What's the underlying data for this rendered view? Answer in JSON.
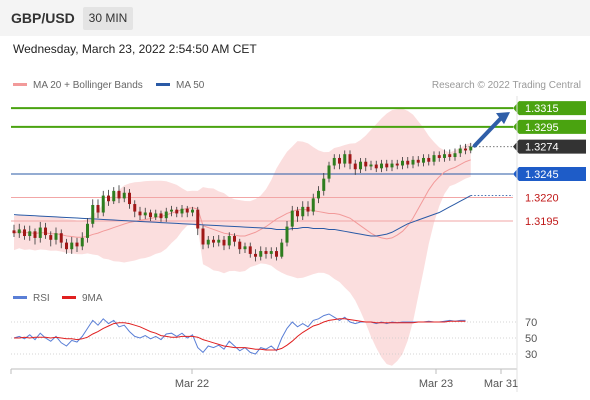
{
  "header": {
    "symbol": "GBP/USD",
    "timeframe": "30 MIN"
  },
  "datetime": "Wednesday, March 23, 2022 2:54:50 AM CET",
  "legend": [
    {
      "label": "MA 20 + Bollinger Bands",
      "color": "#f29a9a"
    },
    {
      "label": "MA 50",
      "color": "#2a5aa6"
    }
  ],
  "credit": "Research © 2022 Trading Central",
  "rsi_legend": [
    {
      "label": "RSI",
      "color": "#5a7fd6"
    },
    {
      "label": "9MA",
      "color": "#e02020"
    }
  ],
  "colors": {
    "up": "#2e7d1f",
    "down": "#a01818",
    "target": "#4aa310",
    "ma50": "#2a5aa6",
    "bollinger": "#f7c3c3",
    "current": "#333333"
  },
  "chart_data": [
    {
      "type": "candlestick",
      "pair": "GBP/USD",
      "interval": "30 MIN",
      "y_range": [
        1.3145,
        1.333
      ],
      "levels": [
        {
          "value": "1.3315",
          "kind": "resistance",
          "style": "green"
        },
        {
          "value": "1.3295",
          "kind": "resistance",
          "style": "green"
        },
        {
          "value": "1.3274",
          "kind": "current",
          "style": "black"
        },
        {
          "value": "1.3245",
          "kind": "pivot",
          "style": "blue"
        },
        {
          "value": "1.3220",
          "kind": "support",
          "style": "red"
        },
        {
          "value": "1.3195",
          "kind": "support",
          "style": "red"
        }
      ],
      "x_labels": [
        "Mar 22",
        "Mar 23",
        "Mar 31"
      ],
      "candles": [
        [
          1.3185,
          1.3182,
          1.3191,
          1.3178
        ],
        [
          1.3182,
          1.3186,
          1.3192,
          1.3177
        ],
        [
          1.3186,
          1.3179,
          1.319,
          1.3175
        ],
        [
          1.3179,
          1.3184,
          1.319,
          1.3174
        ],
        [
          1.3184,
          1.3177,
          1.3187,
          1.317
        ],
        [
          1.3177,
          1.3188,
          1.3194,
          1.3172
        ],
        [
          1.3188,
          1.318,
          1.3193,
          1.3176
        ],
        [
          1.318,
          1.3175,
          1.3184,
          1.3168
        ],
        [
          1.3175,
          1.3182,
          1.3188,
          1.317
        ],
        [
          1.3182,
          1.3172,
          1.3186,
          1.3166
        ],
        [
          1.3172,
          1.3165,
          1.3176,
          1.316
        ],
        [
          1.3165,
          1.3172,
          1.3178,
          1.316
        ],
        [
          1.3172,
          1.3168,
          1.3177,
          1.3162
        ],
        [
          1.3168,
          1.3177,
          1.3183,
          1.3164
        ],
        [
          1.3177,
          1.3192,
          1.3198,
          1.3172
        ],
        [
          1.3192,
          1.3212,
          1.3218,
          1.3188
        ],
        [
          1.3212,
          1.3204,
          1.3218,
          1.3198
        ],
        [
          1.3204,
          1.3222,
          1.3227,
          1.32
        ],
        [
          1.3222,
          1.3216,
          1.3228,
          1.3211
        ],
        [
          1.3216,
          1.3227,
          1.3231,
          1.3213
        ],
        [
          1.3227,
          1.3219,
          1.3233,
          1.3214
        ],
        [
          1.3219,
          1.3225,
          1.3231,
          1.3215
        ],
        [
          1.3225,
          1.3213,
          1.3229,
          1.3208
        ],
        [
          1.3213,
          1.3205,
          1.3217,
          1.3199
        ],
        [
          1.3205,
          1.3201,
          1.321,
          1.3196
        ],
        [
          1.3201,
          1.3204,
          1.3209,
          1.3197
        ],
        [
          1.3204,
          1.3199,
          1.3207,
          1.3195
        ],
        [
          1.3199,
          1.3203,
          1.3207,
          1.3196
        ],
        [
          1.3203,
          1.3198,
          1.3206,
          1.3194
        ],
        [
          1.3198,
          1.3205,
          1.3209,
          1.3194
        ],
        [
          1.3205,
          1.3207,
          1.3211,
          1.32
        ],
        [
          1.3207,
          1.3203,
          1.321,
          1.3199
        ],
        [
          1.3203,
          1.3208,
          1.3212,
          1.3199
        ],
        [
          1.3208,
          1.3204,
          1.3211,
          1.3199
        ],
        [
          1.3204,
          1.3207,
          1.321,
          1.32
        ],
        [
          1.3207,
          1.3187,
          1.321,
          1.318
        ],
        [
          1.3187,
          1.317,
          1.319,
          1.3165
        ],
        [
          1.317,
          1.3175,
          1.3179,
          1.3166
        ],
        [
          1.3175,
          1.3172,
          1.3179,
          1.3167
        ],
        [
          1.3172,
          1.3175,
          1.318,
          1.3168
        ],
        [
          1.3175,
          1.3169,
          1.3179,
          1.3164
        ],
        [
          1.3169,
          1.3179,
          1.3183,
          1.3165
        ],
        [
          1.3179,
          1.3173,
          1.3182,
          1.3168
        ],
        [
          1.3173,
          1.3165,
          1.3176,
          1.316
        ],
        [
          1.3165,
          1.3168,
          1.3172,
          1.3161
        ],
        [
          1.3168,
          1.316,
          1.3172,
          1.3156
        ],
        [
          1.316,
          1.3157,
          1.3165,
          1.3152
        ],
        [
          1.3157,
          1.3163,
          1.3168,
          1.3153
        ],
        [
          1.3163,
          1.316,
          1.3167,
          1.3155
        ],
        [
          1.316,
          1.3163,
          1.3167,
          1.3155
        ],
        [
          1.3163,
          1.3157,
          1.3167,
          1.3153
        ],
        [
          1.3157,
          1.3172,
          1.3176,
          1.3155
        ],
        [
          1.3172,
          1.3189,
          1.3195,
          1.3168
        ],
        [
          1.3189,
          1.3206,
          1.3211,
          1.3185
        ],
        [
          1.3206,
          1.32,
          1.321,
          1.3194
        ],
        [
          1.32,
          1.321,
          1.3216,
          1.3196
        ],
        [
          1.321,
          1.3205,
          1.3216,
          1.32
        ],
        [
          1.3205,
          1.3219,
          1.3224,
          1.3201
        ],
        [
          1.3219,
          1.3227,
          1.3232,
          1.3214
        ],
        [
          1.3227,
          1.324,
          1.3246,
          1.3222
        ],
        [
          1.324,
          1.3254,
          1.3258,
          1.3236
        ],
        [
          1.3254,
          1.3262,
          1.3266,
          1.325
        ],
        [
          1.3262,
          1.3256,
          1.3266,
          1.325
        ],
        [
          1.3256,
          1.3266,
          1.327,
          1.3252
        ],
        [
          1.3266,
          1.3256,
          1.327,
          1.325
        ],
        [
          1.3256,
          1.325,
          1.326,
          1.3244
        ],
        [
          1.325,
          1.3258,
          1.3262,
          1.3246
        ],
        [
          1.3258,
          1.3253,
          1.3262,
          1.3248
        ],
        [
          1.3253,
          1.3255,
          1.3259,
          1.3249
        ],
        [
          1.3255,
          1.3251,
          1.3259,
          1.3247
        ],
        [
          1.3251,
          1.3256,
          1.326,
          1.3247
        ],
        [
          1.3256,
          1.3252,
          1.326,
          1.3248
        ],
        [
          1.3252,
          1.3256,
          1.326,
          1.3248
        ],
        [
          1.3256,
          1.3254,
          1.326,
          1.325
        ],
        [
          1.3254,
          1.3259,
          1.3263,
          1.325
        ],
        [
          1.3259,
          1.3255,
          1.3263,
          1.3251
        ],
        [
          1.3255,
          1.326,
          1.3264,
          1.3251
        ],
        [
          1.326,
          1.3257,
          1.3264,
          1.3253
        ],
        [
          1.3257,
          1.3262,
          1.3266,
          1.3253
        ],
        [
          1.3262,
          1.3258,
          1.3266,
          1.3254
        ],
        [
          1.3258,
          1.3265,
          1.3269,
          1.3254
        ],
        [
          1.3265,
          1.3262,
          1.3269,
          1.3258
        ],
        [
          1.3262,
          1.3266,
          1.3271,
          1.3258
        ],
        [
          1.3266,
          1.3263,
          1.3271,
          1.3259
        ],
        [
          1.3263,
          1.3267,
          1.3272,
          1.3259
        ],
        [
          1.3267,
          1.3272,
          1.3276,
          1.3263
        ],
        [
          1.3272,
          1.327,
          1.3277,
          1.3266
        ],
        [
          1.327,
          1.3274,
          1.3278,
          1.3267
        ]
      ],
      "ma20": [
        1.319,
        1.3188,
        1.3186,
        1.3184,
        1.3182,
        1.3181,
        1.318,
        1.3179,
        1.3179,
        1.3181,
        1.3183,
        1.3186,
        1.3189,
        1.3193,
        1.3197,
        1.32,
        1.3203,
        1.3205,
        1.3207,
        1.3207,
        1.3207,
        1.3206,
        1.3205,
        1.3204,
        1.3203,
        1.3203,
        1.3202,
        1.32,
        1.3198,
        1.3194,
        1.319,
        1.3186,
        1.3182,
        1.3179,
        1.3177,
        1.3176,
        1.3177,
        1.318,
        1.3184,
        1.319,
        1.3198,
        1.3208,
        1.3218,
        1.3228,
        1.3236,
        1.3242,
        1.3247,
        1.325,
        1.3252,
        1.3255,
        1.3258,
        1.326
      ],
      "ma20_start": 36,
      "ma50": [
        1.3187,
        1.3186,
        1.3186,
        1.3186,
        1.3187,
        1.3187,
        1.3188,
        1.3188,
        1.3187,
        1.3187,
        1.3187,
        1.3186,
        1.3186,
        1.3185,
        1.3184,
        1.3183,
        1.3182,
        1.3181,
        1.318,
        1.3179,
        1.3179,
        1.318,
        1.3181,
        1.3183,
        1.3186,
        1.3189,
        1.3192,
        1.3194,
        1.3196,
        1.3198,
        1.32,
        1.3202,
        1.3204,
        1.3207,
        1.321,
        1.3213,
        1.3216,
        1.3219,
        1.3222
      ],
      "ma50_start": 49
    },
    {
      "type": "line",
      "name": "RSI",
      "y_ticks": [
        "70",
        "50",
        "30"
      ],
      "series": [
        {
          "name": "RSI",
          "values": [
            50,
            52,
            49,
            54,
            48,
            56,
            50,
            46,
            52,
            44,
            40,
            47,
            45,
            52,
            62,
            72,
            66,
            74,
            68,
            72,
            64,
            66,
            58,
            52,
            50,
            53,
            49,
            52,
            48,
            55,
            56,
            52,
            56,
            50,
            54,
            38,
            32,
            40,
            38,
            41,
            36,
            46,
            40,
            34,
            38,
            32,
            30,
            38,
            36,
            40,
            34,
            50,
            62,
            70,
            64,
            68,
            64,
            72,
            74,
            78,
            80,
            76,
            72,
            76,
            70,
            68,
            70,
            70,
            70,
            68,
            70,
            68,
            70,
            69,
            70,
            70,
            70,
            70,
            70,
            71,
            70,
            70,
            71,
            72,
            71,
            72,
            72
          ]
        },
        {
          "name": "9MA",
          "values": [
            50,
            50,
            51,
            50,
            51,
            51,
            51,
            50,
            51,
            50,
            49,
            49,
            48,
            49,
            51,
            55,
            58,
            62,
            65,
            68,
            69,
            69,
            68,
            66,
            64,
            61,
            58,
            56,
            53,
            52,
            51,
            51,
            52,
            52,
            52,
            51,
            48,
            46,
            44,
            42,
            40,
            39,
            38,
            38,
            38,
            37,
            36,
            36,
            35,
            35,
            35,
            37,
            41,
            46,
            52,
            57,
            61,
            65,
            67,
            70,
            72,
            73,
            74,
            74,
            73,
            72,
            71,
            70,
            70,
            69,
            69,
            69,
            69,
            69,
            69,
            69,
            69,
            70,
            70,
            70,
            70,
            70,
            70,
            71,
            71,
            71,
            71
          ]
        }
      ]
    }
  ]
}
